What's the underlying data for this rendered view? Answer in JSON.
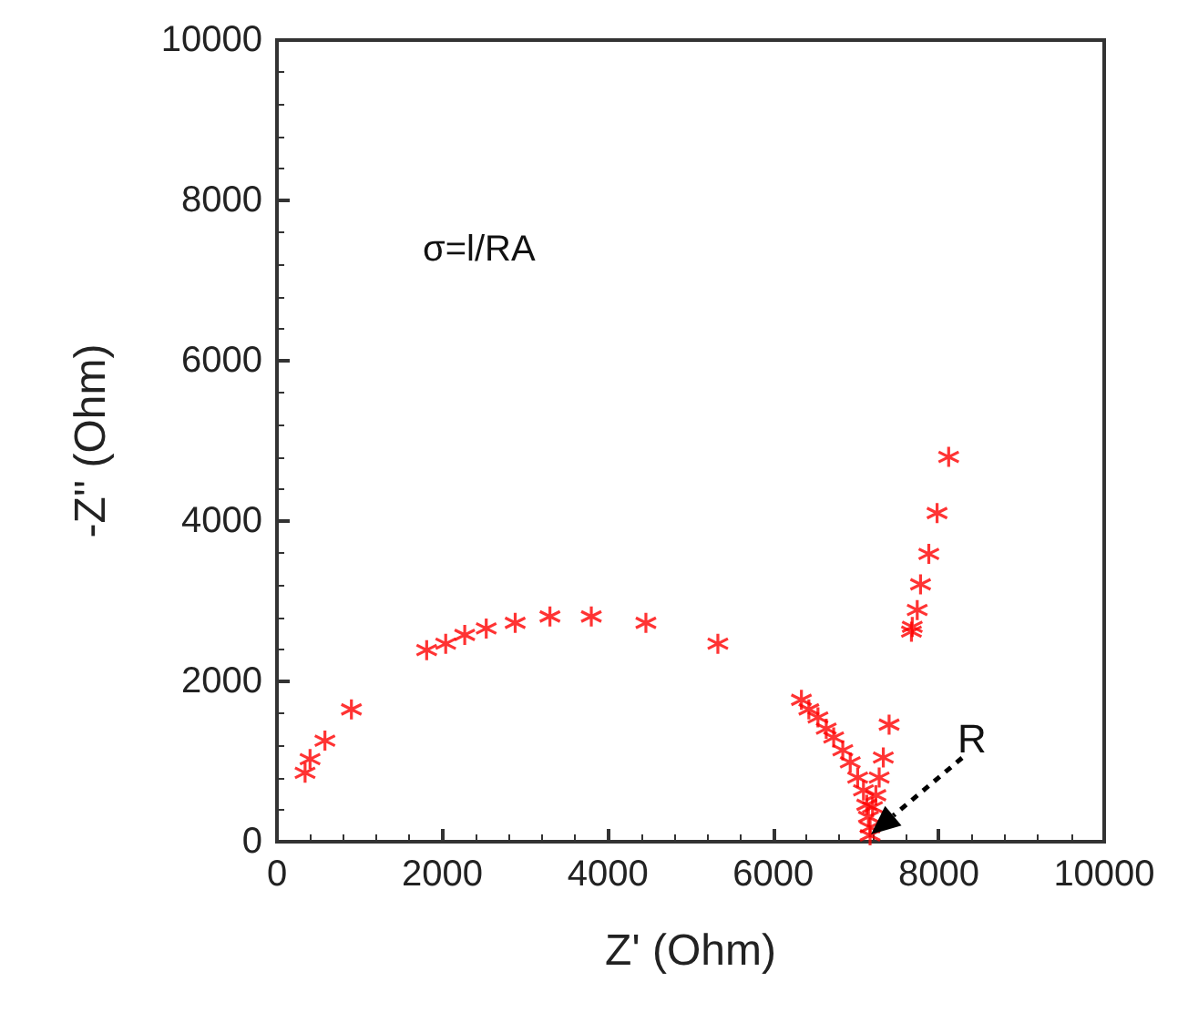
{
  "chart_data": {
    "type": "scatter",
    "xlabel": "Z' (Ohm)",
    "ylabel": "-Z'' (Ohm)",
    "xlim": [
      0,
      10000
    ],
    "ylim": [
      0,
      10000
    ],
    "xticks": [
      0,
      2000,
      4000,
      6000,
      8000,
      10000
    ],
    "yticks": [
      0,
      2000,
      4000,
      6000,
      8000,
      10000
    ],
    "grid": false,
    "marker": "cross",
    "annotations": [
      "σ=l/RA",
      {
        "text": "R",
        "x": 7170,
        "y": 80
      }
    ],
    "series": [
      {
        "color": "#ff0000",
        "x": [
          340,
          400,
          580,
          900,
          1810,
          2040,
          2270,
          2530,
          2880,
          3300,
          3800,
          4460,
          5330,
          6340,
          6430,
          6540,
          6640,
          6730,
          6840,
          6930,
          7020,
          7090,
          7130,
          7150,
          7170,
          7170,
          7200,
          7240,
          7280,
          7330,
          7400,
          7670,
          7680,
          7740,
          7780,
          7880,
          7980,
          8120
        ],
        "values": [
          860,
          1030,
          1260,
          1650,
          2390,
          2470,
          2580,
          2660,
          2730,
          2810,
          2810,
          2730,
          2470,
          1770,
          1650,
          1550,
          1410,
          1300,
          1140,
          990,
          800,
          640,
          460,
          310,
          180,
          80,
          430,
          580,
          800,
          1050,
          1460,
          2620,
          2680,
          2890,
          3210,
          3590,
          4100,
          4800
        ]
      }
    ]
  }
}
